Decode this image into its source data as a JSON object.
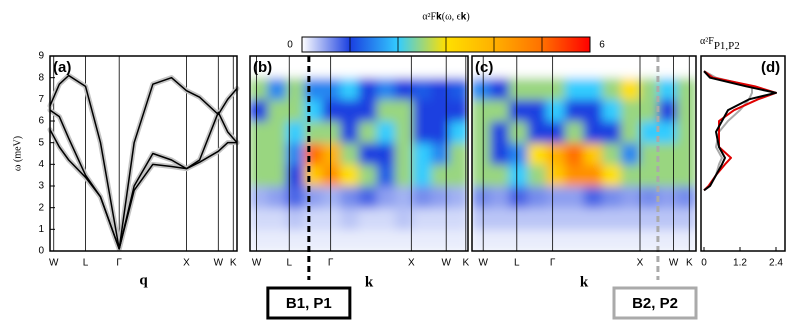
{
  "chart_data": [
    {
      "type": "line",
      "panel": "(a)",
      "ylabel": "ω (meV)",
      "xlabel": "q",
      "x": [
        0,
        0.05,
        0.1,
        0.19,
        0.27,
        0.37,
        0.45,
        0.55,
        0.65,
        0.73,
        0.8,
        0.9,
        0.95,
        1
      ],
      "xlim": [
        0,
        1
      ],
      "xticks": [
        {
          "value": 0.02,
          "label": "W"
        },
        {
          "value": 0.19,
          "label": "L"
        },
        {
          "value": 0.37,
          "label": "Γ"
        },
        {
          "value": 0.73,
          "label": "X"
        },
        {
          "value": 0.9,
          "label": "W"
        },
        {
          "value": 0.98,
          "label": "K"
        }
      ],
      "ylim": [
        0,
        9
      ],
      "yticks": [
        0,
        1,
        2,
        3,
        4,
        5,
        6,
        7,
        8,
        9
      ],
      "shade": "#c4c4c4",
      "series": [
        {
          "color": "#000000",
          "values": [
            5.6,
            4.8,
            4.2,
            3.4,
            2.5,
            0.1,
            2.8,
            4.0,
            3.9,
            3.8,
            4.1,
            4.6,
            5.0,
            5.0
          ]
        },
        {
          "color": "#000000",
          "values": [
            6.5,
            6.2,
            5.2,
            3.5,
            2.5,
            0.1,
            3.0,
            4.5,
            4.2,
            3.8,
            4.2,
            6.4,
            5.5,
            5.0
          ]
        },
        {
          "color": "#000000",
          "values": [
            6.7,
            7.7,
            8.1,
            7.6,
            5.0,
            0.1,
            5.0,
            7.7,
            8.0,
            7.4,
            7.1,
            6.3,
            7.0,
            7.5
          ]
        }
      ]
    },
    {
      "type": "heatmap",
      "panel": "(b)",
      "xlabel": "k",
      "colorbar": {
        "title": "α²F𝐤(ω, ϵ𝐤)",
        "lim": [
          0,
          6
        ],
        "ticks": [
          0,
          6
        ],
        "colormap": [
          "#ffffff",
          "#1a3fe0",
          "#33ccff",
          "#ffe000",
          "#ffb000",
          "#ff7000",
          "#ff0000"
        ]
      },
      "xlim": [
        0,
        1
      ],
      "ylim": [
        0,
        9
      ],
      "xticks": [
        {
          "value": 0.03,
          "label": "W"
        },
        {
          "value": 0.18,
          "label": "L"
        },
        {
          "value": 0.37,
          "label": "Γ"
        },
        {
          "value": 0.74,
          "label": "X"
        },
        {
          "value": 0.9,
          "label": "W"
        },
        {
          "value": 0.99,
          "label": "K"
        }
      ],
      "z": [
        [
          0.1,
          0.1,
          0.1,
          0.1,
          0.1,
          0.1,
          0.1,
          0.1,
          0.1,
          0.1,
          0.1,
          0.1
        ],
        [
          0.2,
          0.2,
          0.3,
          0.2,
          0.2,
          0.3,
          0.2,
          0.2,
          0.3,
          0.2,
          0.2,
          0.2
        ],
        [
          0.4,
          0.5,
          0.8,
          0.5,
          0.4,
          0.6,
          0.8,
          0.5,
          0.4,
          0.6,
          0.5,
          0.4
        ],
        [
          2.5,
          2.5,
          1.0,
          3.5,
          4.5,
          3.0,
          2.5,
          1.2,
          2.5,
          2.0,
          2.5,
          2.5
        ],
        [
          2.5,
          2.5,
          1.5,
          5.0,
          4.0,
          2.5,
          1.0,
          1.0,
          2.5,
          2.0,
          1.5,
          2.5
        ],
        [
          2.5,
          2.5,
          2.0,
          2.5,
          2.5,
          1.0,
          2.5,
          2.0,
          2.5,
          1.0,
          1.0,
          2.0
        ],
        [
          1.0,
          2.5,
          2.5,
          2.0,
          1.0,
          1.0,
          1.0,
          2.5,
          2.5,
          1.0,
          1.0,
          1.0
        ],
        [
          2.5,
          1.5,
          2.5,
          1.5,
          1.5,
          2.0,
          1.0,
          1.5,
          1.0,
          1.2,
          1.0,
          1.2
        ],
        [
          0,
          0,
          0,
          0,
          0,
          0,
          0,
          0,
          0,
          0,
          0,
          0
        ]
      ],
      "marker": {
        "x": 0.27,
        "label": "B1, P1",
        "color": "#000000"
      }
    },
    {
      "type": "heatmap",
      "panel": "(c)",
      "xlabel": "k",
      "xlim": [
        0,
        1
      ],
      "ylim": [
        0,
        9
      ],
      "xticks": [
        {
          "value": 0.05,
          "label": "W"
        },
        {
          "value": 0.2,
          "label": "L"
        },
        {
          "value": 0.36,
          "label": "Γ"
        },
        {
          "value": 0.75,
          "label": "X"
        },
        {
          "value": 0.9,
          "label": "W"
        },
        {
          "value": 0.97,
          "label": "K"
        }
      ],
      "z": [
        [
          0.1,
          0.1,
          0.1,
          0.1,
          0.1,
          0.1,
          0.1,
          0.1,
          0.1,
          0.1,
          0.1,
          0.1
        ],
        [
          0.3,
          0.3,
          0.3,
          0.3,
          0.3,
          0.3,
          0.3,
          0.3,
          0.3,
          0.3,
          0.3,
          0.3
        ],
        [
          0.6,
          0.5,
          0.8,
          0.6,
          0.5,
          0.5,
          0.8,
          0.6,
          0.5,
          0.6,
          0.5,
          0.6
        ],
        [
          2.5,
          2.5,
          2.0,
          2.5,
          3.5,
          4.5,
          4.5,
          3.0,
          2.5,
          2.5,
          2.5,
          2.5
        ],
        [
          2.5,
          1.0,
          1.5,
          3.0,
          4.0,
          5.0,
          3.5,
          2.5,
          1.5,
          2.5,
          2.5,
          2.5
        ],
        [
          2.5,
          1.0,
          2.5,
          1.0,
          1.0,
          2.5,
          1.0,
          1.0,
          2.5,
          2.0,
          2.0,
          2.5
        ],
        [
          2.5,
          2.5,
          1.0,
          1.0,
          2.0,
          1.0,
          1.0,
          2.0,
          2.5,
          2.5,
          1.0,
          2.5
        ],
        [
          1.5,
          1.0,
          2.5,
          2.5,
          2.5,
          2.0,
          2.0,
          2.5,
          3.0,
          2.5,
          2.0,
          2.5
        ],
        [
          0,
          0,
          0,
          0,
          0,
          0,
          0,
          0,
          0,
          0,
          0,
          0
        ]
      ],
      "marker": {
        "x": 0.83,
        "label": "B2, P2",
        "color": "#aaaaaa"
      }
    },
    {
      "type": "hline",
      "panel": "(d)",
      "title": "α²F",
      "title_sub": "P1,P2",
      "y": [
        2.8,
        3.0,
        3.5,
        4.0,
        4.3,
        4.8,
        5.5,
        6.0,
        6.5,
        7.0,
        7.3,
        7.6,
        8.0,
        8.3
      ],
      "xlim": [
        -0.1,
        2.7
      ],
      "xticks": [
        0,
        1.2,
        2.4
      ],
      "ylim": [
        0,
        9
      ],
      "series": [
        {
          "color": "#aaaaaa",
          "values": [
            0,
            0.2,
            0.4,
            0.5,
            0.6,
            0.4,
            0.5,
            0.8,
            1.2,
            1.5,
            1.6,
            1.6,
            0.4,
            0
          ]
        },
        {
          "color": "#e00000",
          "values": [
            0,
            0.15,
            0.4,
            0.7,
            0.9,
            0.5,
            0.5,
            0.5,
            1.0,
            1.8,
            2.4,
            1.7,
            0.3,
            0
          ]
        },
        {
          "color": "#000000",
          "values": [
            0,
            0.2,
            0.4,
            0.6,
            0.7,
            0.5,
            0.4,
            0.6,
            0.8,
            1.5,
            2.4,
            1.4,
            0.2,
            0
          ]
        }
      ]
    }
  ]
}
